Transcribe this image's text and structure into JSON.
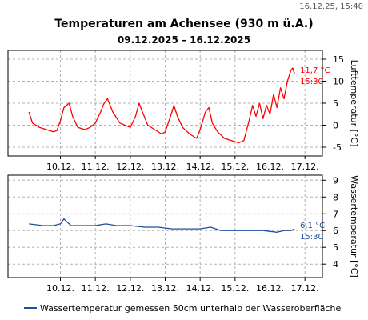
{
  "timestamp": "16.12.25, 15:40",
  "title": "Temperaturen am Achensee (930 m ü.A.)",
  "subtitle": "09.12.2025 – 16.12.2025",
  "colors": {
    "air": "#ff0000",
    "water": "#1f4f9a",
    "grid": "#b0b0b0",
    "frame": "#000000"
  },
  "chart_data": [
    {
      "type": "line",
      "name": "air",
      "ylabel": "Lufttemperatur [°C]",
      "ylim": [
        -7,
        17
      ],
      "yticks": [
        -5,
        0,
        5,
        10,
        15
      ],
      "xlim": [
        -0.5,
        8.5
      ],
      "xticks": [
        1,
        2,
        3,
        4,
        5,
        6,
        7,
        8
      ],
      "xtick_labels": [
        "10.12.",
        "11.12.",
        "12.12.",
        "13.12.",
        "14.12.",
        "15.12.",
        "16.12.",
        "17.12."
      ],
      "grid": true,
      "end_label": {
        "value": "11,7 °C",
        "time": "15:30"
      },
      "series": [
        {
          "x": [
            0.1,
            0.2,
            0.4,
            0.6,
            0.8,
            0.9,
            1.0,
            1.1,
            1.25,
            1.35,
            1.5,
            1.7,
            1.85,
            2.0,
            2.15,
            2.25,
            2.35,
            2.5,
            2.7,
            2.85,
            3.0,
            3.15,
            3.25,
            3.35,
            3.5,
            3.7,
            3.9,
            4.0,
            4.15,
            4.25,
            4.35,
            4.5,
            4.7,
            4.9,
            5.0,
            5.15,
            5.25,
            5.35,
            5.5,
            5.7,
            5.9,
            6.1,
            6.25,
            6.4,
            6.5,
            6.6,
            6.7,
            6.8,
            6.9,
            7.0,
            7.1,
            7.2,
            7.3,
            7.4,
            7.5,
            7.6,
            7.65,
            7.7
          ],
          "y": [
            3.0,
            0.5,
            -0.5,
            -1.0,
            -1.5,
            -1.2,
            1.0,
            4.0,
            5.0,
            2.0,
            -0.5,
            -1.0,
            -0.5,
            0.5,
            3.0,
            5.0,
            6.0,
            3.0,
            0.5,
            0.0,
            -0.5,
            2.0,
            5.0,
            3.0,
            0.0,
            -1.0,
            -2.0,
            -1.5,
            2.0,
            4.5,
            2.0,
            -0.5,
            -2.0,
            -3.0,
            -1.0,
            3.0,
            4.0,
            0.5,
            -1.5,
            -3.0,
            -3.5,
            -4.0,
            -3.5,
            1.0,
            4.5,
            2.0,
            5.0,
            1.5,
            4.5,
            2.5,
            7.0,
            4.0,
            8.5,
            6.0,
            10.0,
            12.5,
            13.0,
            11.7
          ]
        }
      ]
    },
    {
      "type": "line",
      "name": "water",
      "ylabel": "Wassertemperatur [°C]",
      "ylim": [
        3.2,
        9.3
      ],
      "yticks": [
        4,
        5,
        6,
        7,
        8,
        9
      ],
      "xlim": [
        -0.5,
        8.5
      ],
      "xticks": [
        1,
        2,
        3,
        4,
        5,
        6,
        7,
        8
      ],
      "xtick_labels": [
        "10.12.",
        "11.12.",
        "12.12.",
        "13.12.",
        "14.12.",
        "15.12.",
        "16.12.",
        "17.12."
      ],
      "grid": true,
      "end_label": {
        "value": "6,1 °C",
        "time": "15:30"
      },
      "legend": "Wassertemperatur gemessen 50cm unterhalb der Wasseroberfläche",
      "series": [
        {
          "x": [
            0.1,
            0.5,
            0.8,
            1.0,
            1.1,
            1.2,
            1.3,
            1.5,
            1.8,
            2.0,
            2.3,
            2.6,
            3.0,
            3.4,
            3.8,
            4.2,
            4.6,
            5.0,
            5.3,
            5.6,
            6.0,
            6.4,
            6.8,
            7.2,
            7.4,
            7.6,
            7.7
          ],
          "y": [
            6.4,
            6.3,
            6.3,
            6.4,
            6.7,
            6.5,
            6.3,
            6.3,
            6.3,
            6.3,
            6.4,
            6.3,
            6.3,
            6.2,
            6.2,
            6.1,
            6.1,
            6.1,
            6.2,
            6.0,
            6.0,
            6.0,
            6.0,
            5.9,
            6.0,
            6.0,
            6.1
          ]
        }
      ]
    }
  ]
}
